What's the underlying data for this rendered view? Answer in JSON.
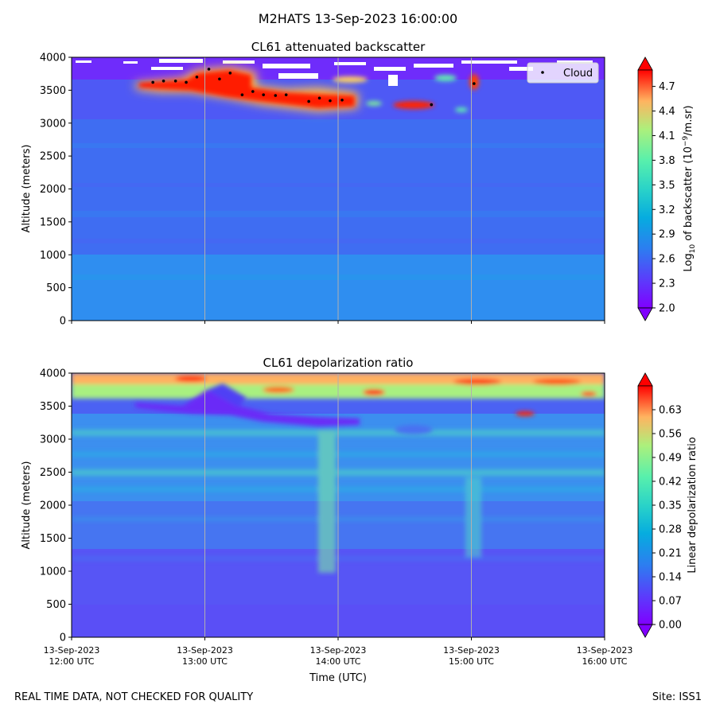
{
  "figure": {
    "suptitle": "M2HATS 13-Sep-2023 16:00:00",
    "footer_left": "REAL TIME DATA, NOT CHECKED FOR QUALITY",
    "footer_right": "Site: ISS1",
    "xlabel": "Time (UTC)"
  },
  "chart_data": [
    {
      "type": "heatmap",
      "title": "CL61 attenuated backscatter",
      "ylabel": "Altitude (meters)",
      "ylim": [
        0,
        4000
      ],
      "yticks": [
        0,
        500,
        1000,
        1500,
        2000,
        2500,
        3000,
        3500,
        4000
      ],
      "xlim_hours": [
        12,
        16
      ],
      "colorbar": {
        "label_main": "Log",
        "label_sub": "10",
        "label_rest": " of backscatter (10",
        "label_sup": "−9",
        "label_end": "/m.sr)",
        "range": [
          2.0,
          4.9
        ],
        "ticks": [
          "2.0",
          "2.3",
          "2.6",
          "2.9",
          "3.2",
          "3.5",
          "3.8",
          "4.1",
          "4.4",
          "4.7"
        ],
        "tick_values": [
          2.0,
          2.3,
          2.6,
          2.9,
          3.2,
          3.5,
          3.8,
          4.1,
          4.4,
          4.7
        ],
        "extend": "both",
        "colormap": "rainbow"
      },
      "legend": {
        "label": "Cloud",
        "loc": "top-right"
      },
      "cloud_base_points": [
        {
          "t": 12.61,
          "alt": 3620
        },
        {
          "t": 12.69,
          "alt": 3640
        },
        {
          "t": 12.78,
          "alt": 3640
        },
        {
          "t": 12.86,
          "alt": 3620
        },
        {
          "t": 12.94,
          "alt": 3700
        },
        {
          "t": 13.03,
          "alt": 3820
        },
        {
          "t": 13.11,
          "alt": 3670
        },
        {
          "t": 13.19,
          "alt": 3760
        },
        {
          "t": 13.28,
          "alt": 3430
        },
        {
          "t": 13.36,
          "alt": 3480
        },
        {
          "t": 13.44,
          "alt": 3430
        },
        {
          "t": 13.53,
          "alt": 3420
        },
        {
          "t": 13.61,
          "alt": 3430
        },
        {
          "t": 13.78,
          "alt": 3330
        },
        {
          "t": 13.86,
          "alt": 3380
        },
        {
          "t": 13.94,
          "alt": 3340
        },
        {
          "t": 14.03,
          "alt": 3350
        },
        {
          "t": 14.7,
          "alt": 3280
        },
        {
          "t": 15.02,
          "alt": 3600
        }
      ],
      "features": [
        {
          "name": "cloud-layer-main",
          "t_start": 12.5,
          "t_end": 14.2,
          "alt_base": 3250,
          "alt_top": 3850,
          "log_backscatter": 5.0
        },
        {
          "name": "cloud-patch-east",
          "t_start": 14.45,
          "t_end": 14.75,
          "alt_base": 3230,
          "alt_top": 3320,
          "log_backscatter": 5.0
        },
        {
          "name": "cloud-patch-15utc",
          "t_start": 14.98,
          "t_end": 15.06,
          "alt_base": 3550,
          "alt_top": 3700,
          "log_backscatter": 4.9
        }
      ]
    },
    {
      "type": "heatmap",
      "title": "CL61 depolarization ratio",
      "ylabel": "Altitude (meters)",
      "ylim": [
        0,
        4000
      ],
      "yticks": [
        0,
        500,
        1000,
        1500,
        2000,
        2500,
        3000,
        3500,
        4000
      ],
      "xlim_hours": [
        12,
        16
      ],
      "colorbar": {
        "label": "Linear depolarization ratio",
        "range": [
          0.0,
          0.7
        ],
        "ticks": [
          "0.00",
          "0.07",
          "0.14",
          "0.21",
          "0.28",
          "0.35",
          "0.42",
          "0.49",
          "0.56",
          "0.63"
        ],
        "tick_values": [
          0.0,
          0.07,
          0.14,
          0.21,
          0.28,
          0.35,
          0.42,
          0.49,
          0.56,
          0.63
        ],
        "extend": "both",
        "colormap": "rainbow"
      },
      "xticks": [
        {
          "t": 12,
          "date": "13-Sep-2023",
          "time": "12:00 UTC"
        },
        {
          "t": 13,
          "date": "13-Sep-2023",
          "time": "13:00 UTC"
        },
        {
          "t": 14,
          "date": "13-Sep-2023",
          "time": "14:00 UTC"
        },
        {
          "t": 15,
          "date": "13-Sep-2023",
          "time": "15:00 UTC"
        },
        {
          "t": 16,
          "date": "13-Sep-2023",
          "time": "16:00 UTC"
        }
      ]
    }
  ]
}
